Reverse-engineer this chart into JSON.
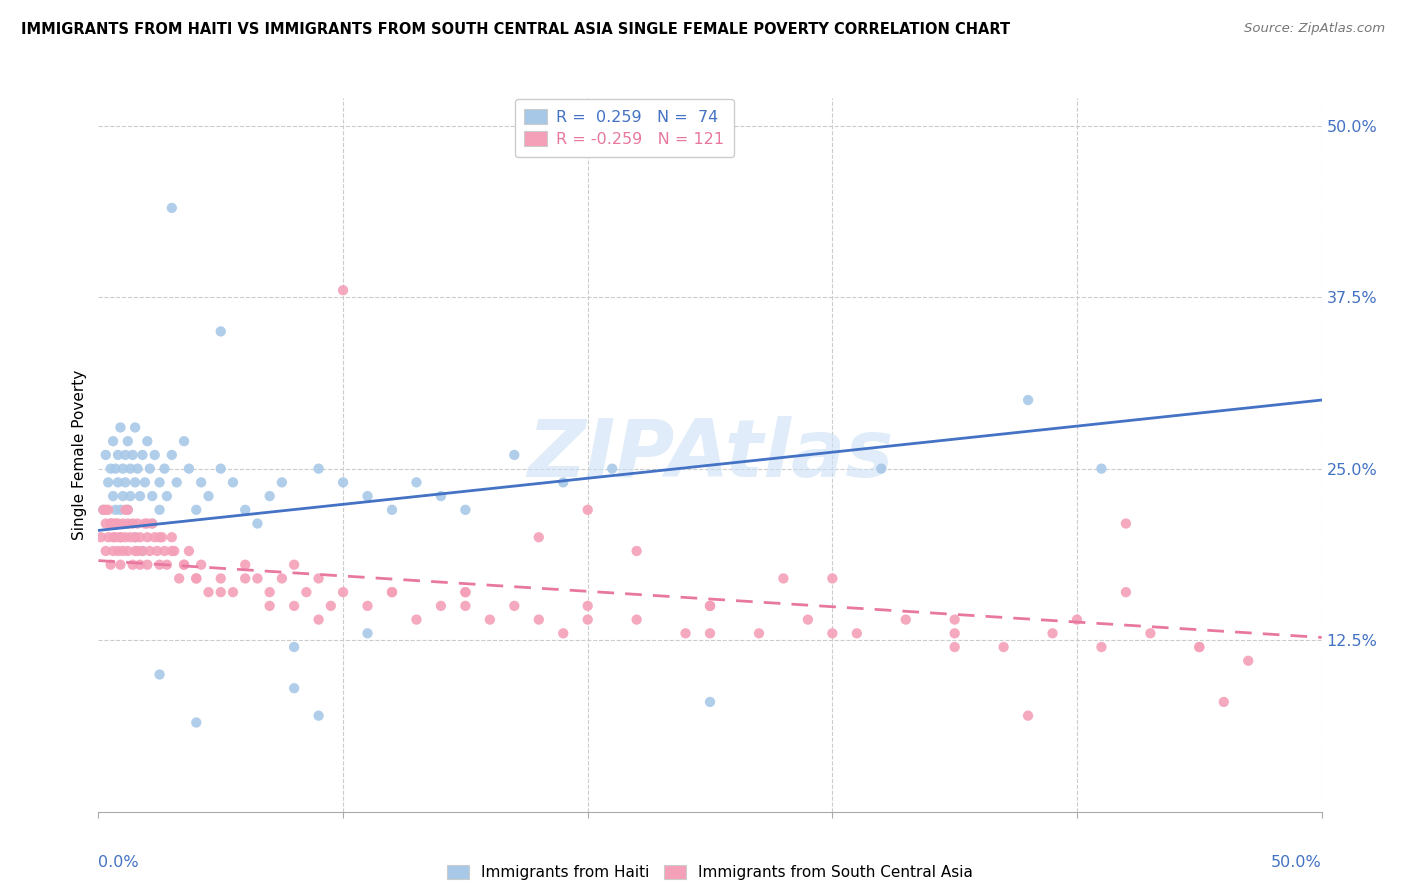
{
  "title": "IMMIGRANTS FROM HAITI VS IMMIGRANTS FROM SOUTH CENTRAL ASIA SINGLE FEMALE POVERTY CORRELATION CHART",
  "source": "Source: ZipAtlas.com",
  "ylabel": "Single Female Poverty",
  "ytick_vals": [
    0.125,
    0.25,
    0.375,
    0.5
  ],
  "blue_color": "#a8c8e8",
  "pink_color": "#f4a0b8",
  "blue_line_color": "#4472c4",
  "pink_line_color": "#e878a0",
  "watermark": "ZIPAtlas",
  "haiti_n": 74,
  "haiti_r": 0.259,
  "sca_n": 121,
  "sca_r": -0.259,
  "haiti_x": [
    0.002,
    0.003,
    0.004,
    0.005,
    0.005,
    0.006,
    0.006,
    0.007,
    0.007,
    0.008,
    0.008,
    0.009,
    0.009,
    0.01,
    0.01,
    0.011,
    0.011,
    0.012,
    0.012,
    0.013,
    0.013,
    0.014,
    0.015,
    0.015,
    0.016,
    0.017,
    0.018,
    0.019,
    0.02,
    0.021,
    0.022,
    0.023,
    0.025,
    0.025,
    0.027,
    0.028,
    0.03,
    0.032,
    0.035,
    0.037,
    0.04,
    0.042,
    0.045,
    0.05,
    0.055,
    0.06,
    0.065,
    0.07,
    0.075,
    0.08,
    0.09,
    0.1,
    0.11,
    0.12,
    0.13,
    0.14,
    0.15,
    0.17,
    0.19,
    0.21,
    0.025,
    0.04,
    0.08,
    0.09,
    0.11,
    0.25,
    0.32,
    0.38,
    0.41,
    0.015,
    0.018,
    0.022,
    0.03,
    0.05
  ],
  "haiti_y": [
    0.22,
    0.26,
    0.24,
    0.25,
    0.21,
    0.27,
    0.23,
    0.22,
    0.25,
    0.24,
    0.26,
    0.22,
    0.28,
    0.25,
    0.23,
    0.26,
    0.24,
    0.22,
    0.27,
    0.25,
    0.23,
    0.26,
    0.28,
    0.24,
    0.25,
    0.23,
    0.26,
    0.24,
    0.27,
    0.25,
    0.23,
    0.26,
    0.22,
    0.24,
    0.25,
    0.23,
    0.26,
    0.24,
    0.27,
    0.25,
    0.22,
    0.24,
    0.23,
    0.25,
    0.24,
    0.22,
    0.21,
    0.23,
    0.24,
    0.12,
    0.25,
    0.24,
    0.23,
    0.22,
    0.24,
    0.23,
    0.22,
    0.26,
    0.24,
    0.25,
    0.1,
    0.065,
    0.09,
    0.07,
    0.13,
    0.08,
    0.25,
    0.3,
    0.25,
    0.2,
    0.19,
    0.21,
    0.44,
    0.35
  ],
  "sca_x": [
    0.001,
    0.002,
    0.003,
    0.003,
    0.004,
    0.004,
    0.005,
    0.005,
    0.006,
    0.006,
    0.007,
    0.007,
    0.008,
    0.008,
    0.009,
    0.009,
    0.01,
    0.01,
    0.011,
    0.011,
    0.012,
    0.012,
    0.013,
    0.014,
    0.014,
    0.015,
    0.015,
    0.016,
    0.017,
    0.017,
    0.018,
    0.019,
    0.02,
    0.02,
    0.021,
    0.022,
    0.023,
    0.024,
    0.025,
    0.026,
    0.027,
    0.028,
    0.03,
    0.031,
    0.033,
    0.035,
    0.037,
    0.04,
    0.042,
    0.045,
    0.05,
    0.055,
    0.06,
    0.065,
    0.07,
    0.075,
    0.08,
    0.085,
    0.09,
    0.095,
    0.1,
    0.11,
    0.12,
    0.13,
    0.14,
    0.15,
    0.16,
    0.17,
    0.18,
    0.19,
    0.2,
    0.22,
    0.24,
    0.25,
    0.27,
    0.29,
    0.31,
    0.33,
    0.35,
    0.37,
    0.39,
    0.41,
    0.43,
    0.45,
    0.47,
    0.003,
    0.006,
    0.009,
    0.012,
    0.016,
    0.02,
    0.025,
    0.03,
    0.035,
    0.04,
    0.05,
    0.06,
    0.07,
    0.09,
    0.12,
    0.15,
    0.2,
    0.25,
    0.3,
    0.35,
    0.4,
    0.45,
    0.1,
    0.2,
    0.3,
    0.38,
    0.42,
    0.46,
    0.08,
    0.15,
    0.22,
    0.28,
    0.35,
    0.42,
    0.18,
    0.25
  ],
  "sca_y": [
    0.2,
    0.22,
    0.19,
    0.21,
    0.2,
    0.22,
    0.18,
    0.21,
    0.2,
    0.19,
    0.21,
    0.2,
    0.19,
    0.21,
    0.2,
    0.18,
    0.21,
    0.19,
    0.2,
    0.22,
    0.19,
    0.21,
    0.2,
    0.18,
    0.21,
    0.2,
    0.19,
    0.21,
    0.2,
    0.18,
    0.19,
    0.21,
    0.2,
    0.18,
    0.19,
    0.21,
    0.2,
    0.19,
    0.18,
    0.2,
    0.19,
    0.18,
    0.2,
    0.19,
    0.17,
    0.18,
    0.19,
    0.17,
    0.18,
    0.16,
    0.17,
    0.16,
    0.18,
    0.17,
    0.16,
    0.17,
    0.15,
    0.16,
    0.17,
    0.15,
    0.16,
    0.15,
    0.16,
    0.14,
    0.15,
    0.16,
    0.14,
    0.15,
    0.14,
    0.13,
    0.15,
    0.14,
    0.13,
    0.15,
    0.13,
    0.14,
    0.13,
    0.14,
    0.13,
    0.12,
    0.13,
    0.12,
    0.13,
    0.12,
    0.11,
    0.22,
    0.21,
    0.2,
    0.22,
    0.19,
    0.21,
    0.2,
    0.19,
    0.18,
    0.17,
    0.16,
    0.17,
    0.15,
    0.14,
    0.16,
    0.15,
    0.14,
    0.15,
    0.13,
    0.12,
    0.14,
    0.12,
    0.38,
    0.22,
    0.17,
    0.07,
    0.21,
    0.08,
    0.18,
    0.16,
    0.19,
    0.17,
    0.14,
    0.16,
    0.2,
    0.13
  ]
}
